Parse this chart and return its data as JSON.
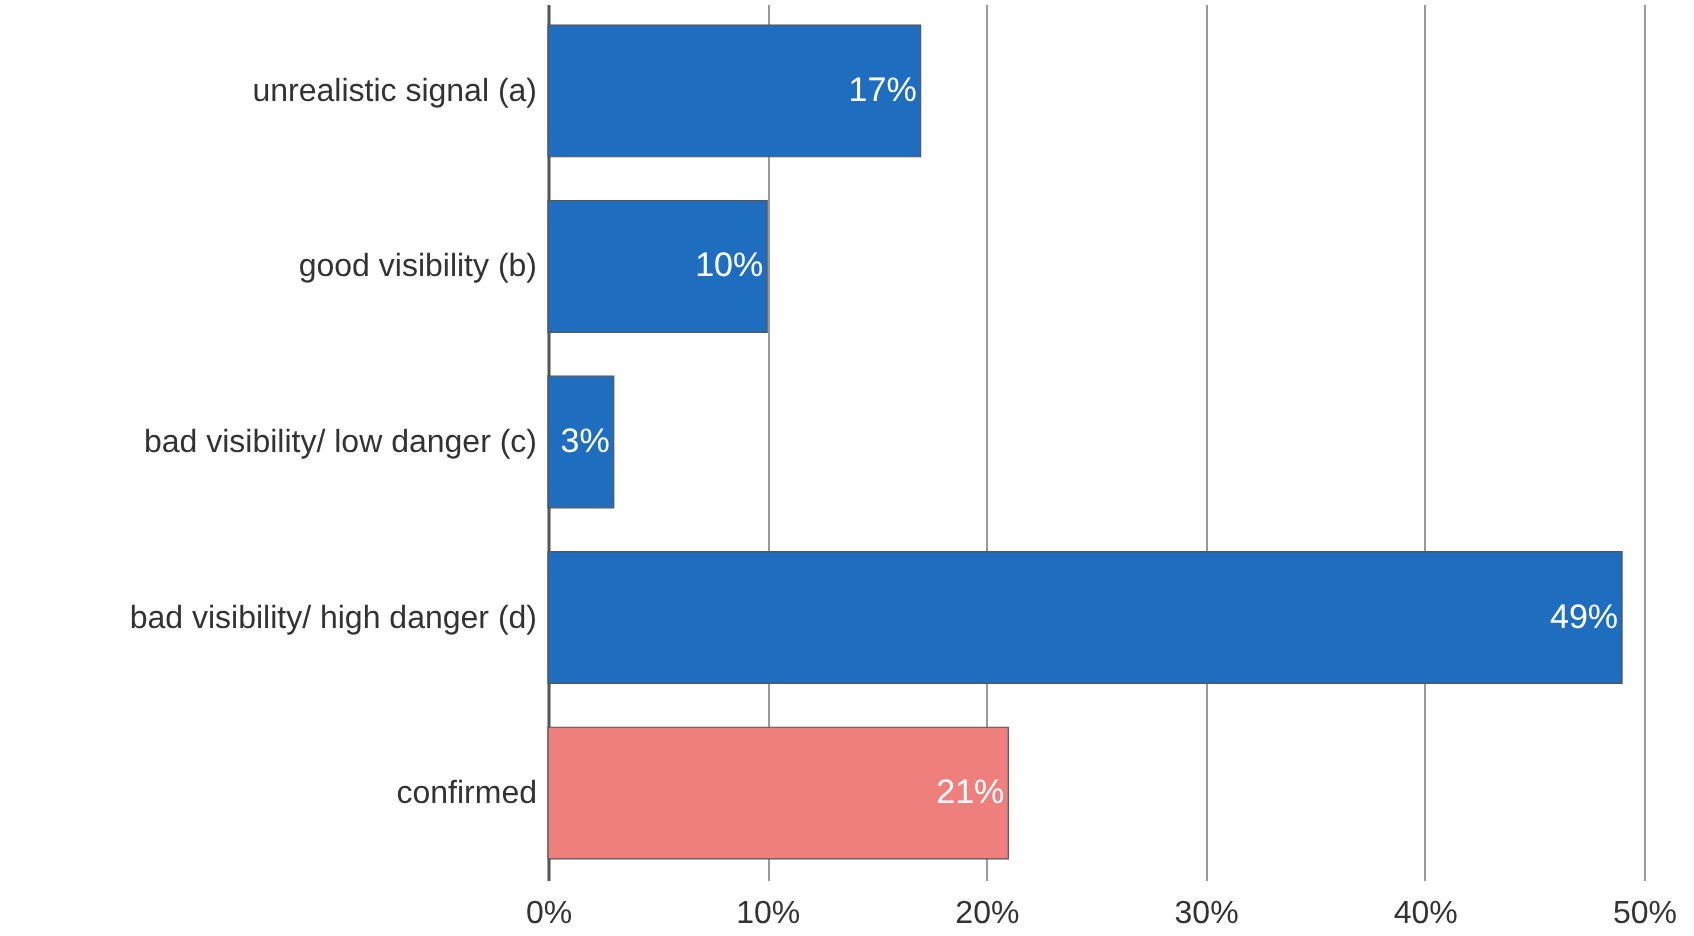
{
  "chart_data": {
    "type": "bar",
    "orientation": "horizontal",
    "categories": [
      "unrealistic signal (a)",
      "good visibility (b)",
      "bad visibility/ low danger (c)",
      "bad visibility/ high danger (d)",
      "confirmed"
    ],
    "values": [
      17,
      10,
      3,
      49,
      21
    ],
    "value_labels": [
      "17%",
      "10%",
      "3%",
      "49%",
      "21%"
    ],
    "colors": [
      "#1f6dbf",
      "#1f6dbf",
      "#1f6dbf",
      "#1f6dbf",
      "#ef7f7c"
    ],
    "xlim": [
      0,
      50
    ],
    "xticks": [
      {
        "value": 0,
        "label": "0%"
      },
      {
        "value": 10,
        "label": "10%"
      },
      {
        "value": 20,
        "label": "20%"
      },
      {
        "value": 30,
        "label": "30%"
      },
      {
        "value": 40,
        "label": "40%"
      },
      {
        "value": 50,
        "label": "50%"
      }
    ],
    "grid": "x"
  }
}
